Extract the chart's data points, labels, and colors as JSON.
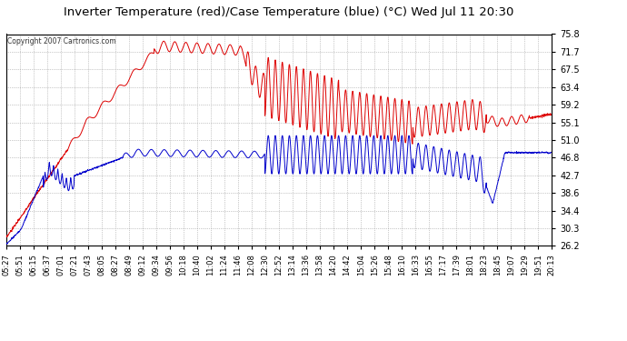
{
  "title": "Inverter Temperature (red)/Case Temperature (blue) (°C) Wed Jul 11 20:30",
  "yticks": [
    26.2,
    30.3,
    34.4,
    38.6,
    42.7,
    46.8,
    51.0,
    55.1,
    59.2,
    63.4,
    67.5,
    71.7,
    75.8
  ],
  "ymin": 26.2,
  "ymax": 75.8,
  "red_color": "#dd0000",
  "blue_color": "#0000cc",
  "background_color": "#ffffff",
  "grid_color": "#aaaaaa",
  "copyright_text": "Copyright 2007 Cartronics.com",
  "xtick_labels": [
    "05:27",
    "05:51",
    "06:15",
    "06:37",
    "07:01",
    "07:21",
    "07:43",
    "08:05",
    "08:27",
    "08:49",
    "09:12",
    "09:34",
    "09:56",
    "10:18",
    "10:40",
    "11:02",
    "11:24",
    "11:46",
    "12:08",
    "12:30",
    "12:52",
    "13:14",
    "13:36",
    "13:58",
    "14:20",
    "14:42",
    "15:04",
    "15:26",
    "15:48",
    "16:10",
    "16:33",
    "16:55",
    "17:17",
    "17:39",
    "18:01",
    "18:23",
    "18:45",
    "19:07",
    "19:29",
    "19:51",
    "20:13"
  ]
}
